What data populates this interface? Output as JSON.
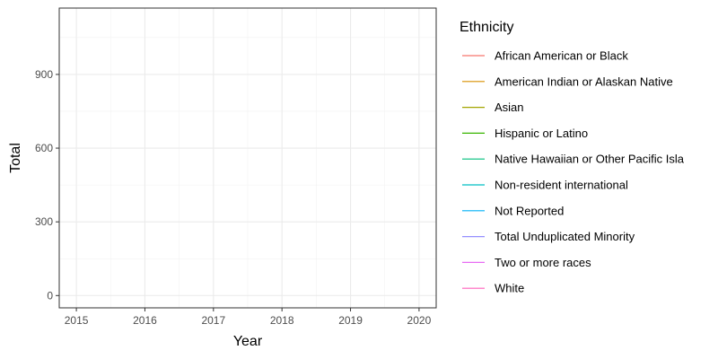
{
  "chart_data": {
    "type": "line",
    "xlabel": "Year",
    "ylabel": "Total",
    "xlim": [
      2014.75,
      2020.25
    ],
    "ylim": [
      -50,
      1170
    ],
    "x_ticks": [
      2015,
      2016,
      2017,
      2018,
      2019,
      2020
    ],
    "y_ticks": [
      0,
      300,
      600,
      900
    ],
    "grid": true,
    "legend_title": "Ethnicity",
    "legend_placement": "right",
    "series": [
      {
        "name": "African American or Black",
        "color": "#F8766D",
        "values": []
      },
      {
        "name": "American Indian or Alaskan Native",
        "color": "#D89000",
        "values": []
      },
      {
        "name": "Asian",
        "color": "#A3A500",
        "values": []
      },
      {
        "name": "Hispanic or Latino",
        "color": "#39B600",
        "values": []
      },
      {
        "name": "Native Hawaiian or Other Pacific Isla",
        "color": "#00BF7D",
        "values": []
      },
      {
        "name": "Non-resident international",
        "color": "#00BFC4",
        "values": []
      },
      {
        "name": "Not Reported",
        "color": "#00B0F6",
        "values": []
      },
      {
        "name": "Total Unduplicated Minority",
        "color": "#9590FF",
        "values": []
      },
      {
        "name": "Two or more races",
        "color": "#E76BF3",
        "values": []
      },
      {
        "name": "White",
        "color": "#FF62BC",
        "values": []
      }
    ]
  }
}
